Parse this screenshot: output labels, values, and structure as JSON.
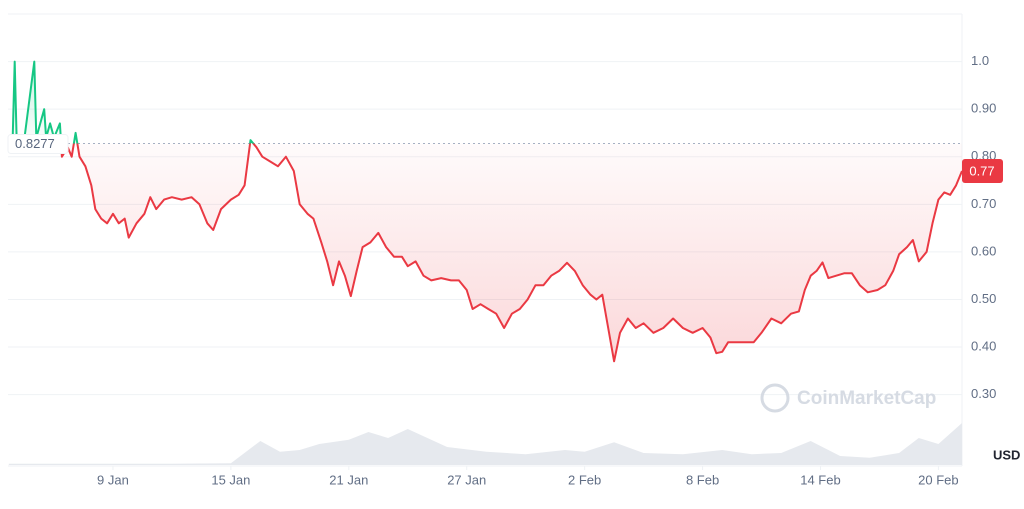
{
  "chart_data": {
    "type": "line",
    "x": [
      3.7,
      3.9,
      4.0,
      4.1,
      4.5,
      5.0,
      5.1,
      5.5,
      5.6,
      5.8,
      6.0,
      6.3,
      6.4,
      6.7,
      6.9,
      7.1,
      7.3,
      7.6,
      7.9,
      8.1,
      8.4,
      8.7,
      9.0,
      9.3,
      9.6,
      9.8,
      10.2,
      10.6,
      10.9,
      11.2,
      11.6,
      12.0,
      12.5,
      13.0,
      13.4,
      13.8,
      14.1,
      14.5,
      15.0,
      15.4,
      15.7,
      16.0,
      16.3,
      16.6,
      17.0,
      17.4,
      17.8,
      18.2,
      18.5,
      18.9,
      19.2,
      19.6,
      19.9,
      20.2,
      20.5,
      20.8,
      21.1,
      21.4,
      21.7,
      22.1,
      22.5,
      22.9,
      23.3,
      23.7,
      24.0,
      24.4,
      24.8,
      25.2,
      25.7,
      26.2,
      26.6,
      27.0,
      27.3,
      27.7,
      28.1,
      28.5,
      28.9,
      29.3,
      29.7,
      30.1,
      30.5,
      30.9,
      31.3,
      31.7,
      32.1,
      32.5,
      32.9,
      33.3,
      33.6,
      33.9,
      34.2,
      34.5,
      34.8,
      35.2,
      35.6,
      36.0,
      36.5,
      37.0,
      37.5,
      38.0,
      38.5,
      39.0,
      39.4,
      39.7,
      40.0,
      40.3,
      40.7,
      41.2,
      41.6,
      42.0,
      42.5,
      43.0,
      43.5,
      43.9,
      44.2,
      44.5,
      44.8,
      45.1,
      45.4,
      45.8,
      46.2,
      46.6,
      47.0,
      47.4,
      47.9,
      48.3,
      48.7,
      49.0,
      49.4,
      49.7,
      50.0,
      50.4,
      50.7,
      51.0,
      51.3,
      51.6,
      51.9,
      52.2
    ],
    "values": [
      0.83,
      0.84,
      1.0,
      0.84,
      0.84,
      1.0,
      0.84,
      0.9,
      0.84,
      0.87,
      0.84,
      0.87,
      0.8,
      0.82,
      0.8,
      0.85,
      0.8,
      0.78,
      0.74,
      0.69,
      0.67,
      0.66,
      0.68,
      0.66,
      0.67,
      0.63,
      0.66,
      0.68,
      0.715,
      0.69,
      0.71,
      0.715,
      0.71,
      0.715,
      0.7,
      0.66,
      0.646,
      0.69,
      0.71,
      0.72,
      0.74,
      0.835,
      0.82,
      0.8,
      0.79,
      0.78,
      0.8,
      0.77,
      0.7,
      0.68,
      0.67,
      0.62,
      0.58,
      0.53,
      0.58,
      0.55,
      0.507,
      0.56,
      0.61,
      0.62,
      0.64,
      0.61,
      0.59,
      0.59,
      0.57,
      0.58,
      0.55,
      0.54,
      0.545,
      0.54,
      0.54,
      0.52,
      0.48,
      0.49,
      0.48,
      0.47,
      0.44,
      0.47,
      0.48,
      0.5,
      0.53,
      0.53,
      0.55,
      0.56,
      0.577,
      0.56,
      0.53,
      0.51,
      0.5,
      0.51,
      0.44,
      0.37,
      0.43,
      0.46,
      0.44,
      0.45,
      0.43,
      0.44,
      0.46,
      0.44,
      0.43,
      0.44,
      0.42,
      0.387,
      0.39,
      0.41,
      0.41,
      0.41,
      0.41,
      0.43,
      0.46,
      0.45,
      0.47,
      0.475,
      0.52,
      0.55,
      0.56,
      0.578,
      0.545,
      0.55,
      0.555,
      0.555,
      0.53,
      0.515,
      0.52,
      0.53,
      0.56,
      0.595,
      0.61,
      0.625,
      0.58,
      0.6,
      0.66,
      0.71,
      0.725,
      0.72,
      0.74,
      0.77
    ],
    "color_up": "#16c784",
    "color_down": "#ea3943",
    "baseline": 0.8277,
    "last_price": 0.77,
    "currency": "USD",
    "watermark": "CoinMarketCap",
    "xlim": [
      3.66,
      52.2
    ],
    "ylim": [
      0.15,
      1.1
    ],
    "xticks": [
      {
        "value": 9,
        "label": "9 Jan"
      },
      {
        "value": 15,
        "label": "15 Jan"
      },
      {
        "value": 21,
        "label": "21 Jan"
      },
      {
        "value": 27,
        "label": "27 Jan"
      },
      {
        "value": 33,
        "label": "2 Feb"
      },
      {
        "value": 39,
        "label": "8 Feb"
      },
      {
        "value": 45,
        "label": "14 Feb"
      },
      {
        "value": 51,
        "label": "20 Feb"
      }
    ],
    "yticks": [
      {
        "value": 0.3,
        "label": "0.30"
      },
      {
        "value": 0.4,
        "label": "0.40"
      },
      {
        "value": 0.5,
        "label": "0.50"
      },
      {
        "value": 0.6,
        "label": "0.60"
      },
      {
        "value": 0.7,
        "label": "0.70"
      },
      {
        "value": 0.8,
        "label": "0.80"
      },
      {
        "value": 0.9,
        "label": "0.90"
      },
      {
        "value": 1.0,
        "label": "1.0"
      }
    ],
    "grid": true,
    "volume": {
      "x": [
        3.7,
        8,
        12,
        15,
        16.5,
        17.5,
        18.5,
        19.5,
        21,
        22,
        23,
        24,
        26,
        28,
        30,
        32,
        33,
        34.5,
        36,
        38,
        40,
        41.5,
        43,
        44.5,
        46,
        47.5,
        49,
        50,
        51,
        52.2
      ],
      "values": [
        2,
        2,
        2,
        3,
        40,
        22,
        25,
        35,
        42,
        55,
        45,
        60,
        30,
        22,
        18,
        25,
        22,
        38,
        20,
        18,
        25,
        18,
        20,
        40,
        15,
        12,
        20,
        45,
        35,
        70
      ],
      "ylim": [
        0,
        100
      ],
      "color": "#e6e9ee"
    }
  }
}
